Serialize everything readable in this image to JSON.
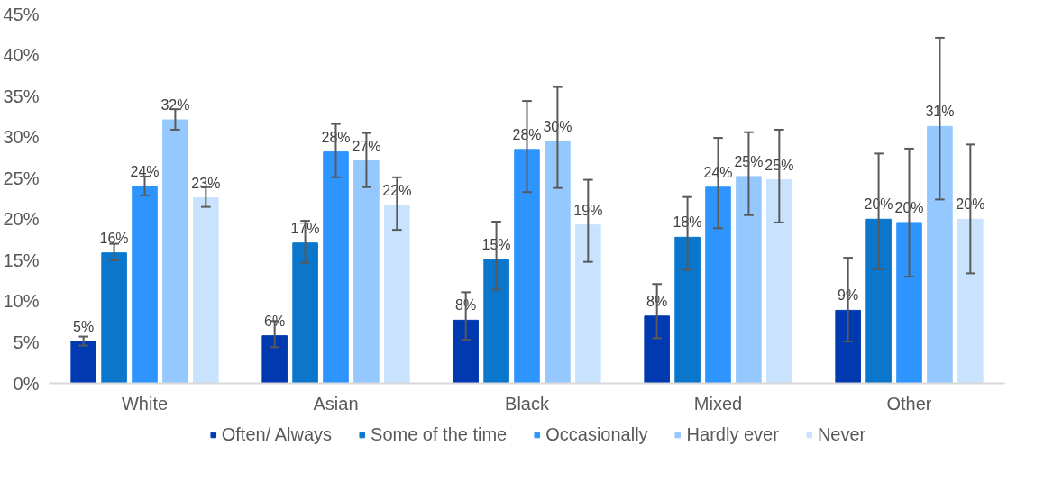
{
  "chart_data": {
    "type": "bar",
    "categories": [
      "White",
      "Asian",
      "Black",
      "Mixed",
      "Other"
    ],
    "ylim": [
      0,
      45
    ],
    "yticks": [
      {
        "value": 0,
        "label": "0%"
      },
      {
        "value": 5,
        "label": "5%"
      },
      {
        "value": 10,
        "label": "10%"
      },
      {
        "value": 15,
        "label": "15%"
      },
      {
        "value": 20,
        "label": "20%"
      },
      {
        "value": 25,
        "label": "25%"
      },
      {
        "value": 30,
        "label": "30%"
      },
      {
        "value": 35,
        "label": "35%"
      },
      {
        "value": 40,
        "label": "40%"
      },
      {
        "value": 45,
        "label": "45%"
      }
    ],
    "grid": false,
    "legend": "bottom",
    "series": [
      {
        "name": "Often/ Always",
        "color": "#0039b0",
        "values": [
          5.1,
          5.8,
          7.7,
          8.2,
          8.9
        ],
        "errors": [
          [
            4.6,
            5.7
          ],
          [
            4.4,
            7.6
          ],
          [
            5.3,
            11.1
          ],
          [
            5.5,
            12.1
          ],
          [
            5.1,
            15.3
          ]
        ],
        "value_labels": [
          "5%",
          "6%",
          "8%",
          "8%",
          "9%"
        ]
      },
      {
        "name": "Some of the time",
        "color": "#0a77cc",
        "values": [
          15.9,
          17.1,
          15.1,
          17.8,
          20.0
        ],
        "errors": [
          [
            15.0,
            17.0
          ],
          [
            14.7,
            19.8
          ],
          [
            11.4,
            19.7
          ],
          [
            13.8,
            22.7
          ],
          [
            13.9,
            28.0
          ]
        ],
        "value_labels": [
          "16%",
          "17%",
          "15%",
          "18%",
          "20%"
        ]
      },
      {
        "name": "Occasionally",
        "color": "#2e95ff",
        "values": [
          24.0,
          28.2,
          28.5,
          23.9,
          19.6
        ],
        "errors": [
          [
            22.9,
            25.2
          ],
          [
            25.1,
            31.6
          ],
          [
            23.3,
            34.4
          ],
          [
            18.9,
            29.9
          ],
          [
            13.0,
            28.6
          ]
        ],
        "value_labels": [
          "24%",
          "28%",
          "28%",
          "24%",
          "20%"
        ]
      },
      {
        "name": "Hardly ever",
        "color": "#94c8ff",
        "values": [
          32.1,
          27.1,
          29.5,
          25.2,
          31.3
        ],
        "errors": [
          [
            30.9,
            33.4
          ],
          [
            23.9,
            30.5
          ],
          [
            23.8,
            36.1
          ],
          [
            20.5,
            30.6
          ],
          [
            22.4,
            42.1
          ]
        ],
        "value_labels": [
          "32%",
          "27%",
          "30%",
          "25%",
          "31%"
        ]
      },
      {
        "name": "Never",
        "color": "#c9e3ff",
        "values": [
          22.6,
          21.7,
          19.3,
          24.8,
          20.0
        ],
        "errors": [
          [
            21.5,
            23.9
          ],
          [
            18.7,
            25.1
          ],
          [
            14.8,
            24.8
          ],
          [
            19.6,
            30.9
          ],
          [
            13.4,
            29.1
          ]
        ],
        "value_labels": [
          "23%",
          "22%",
          "19%",
          "25%",
          "20%"
        ]
      }
    ]
  }
}
